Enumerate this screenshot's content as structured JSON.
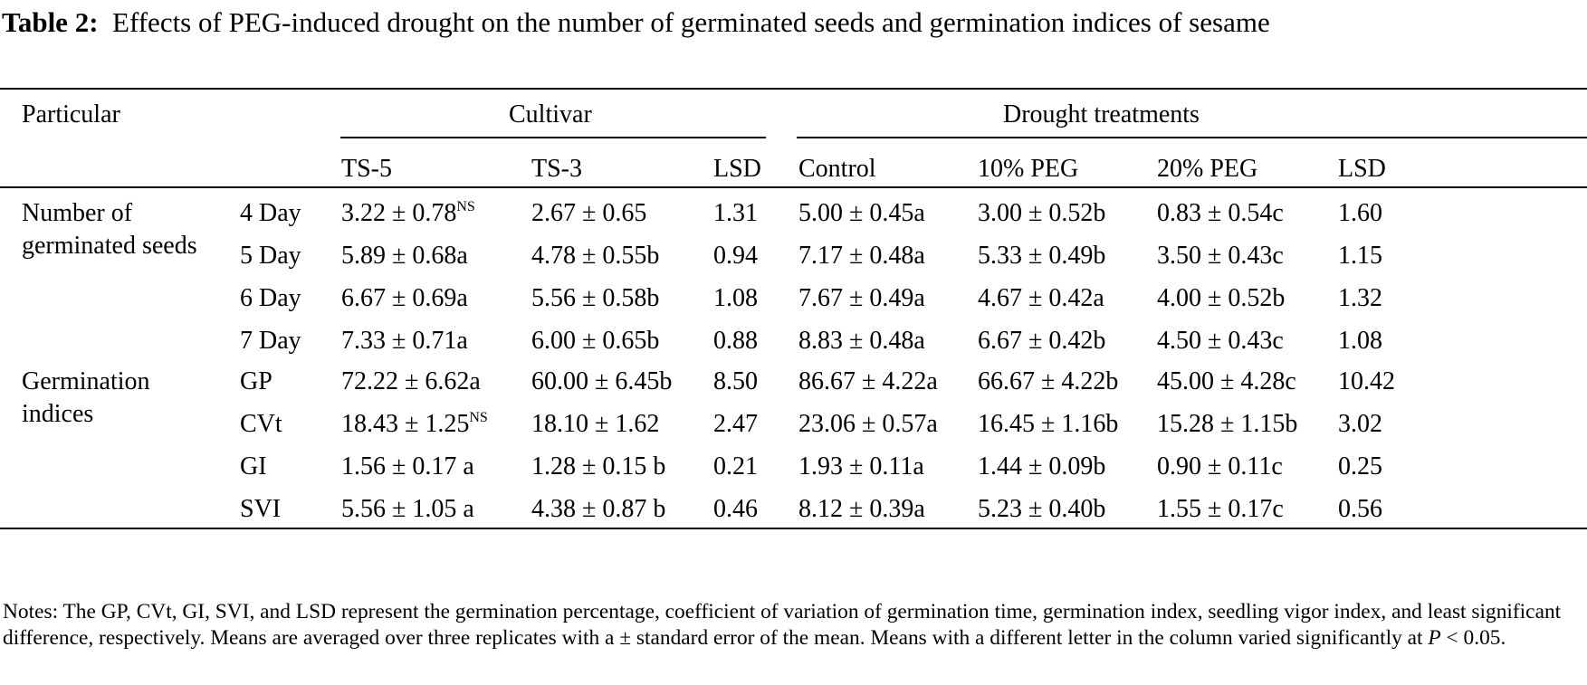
{
  "caption": {
    "label": "Table 2:",
    "text": "Effects of PEG-induced drought on the number of germinated seeds and germination indices of sesame"
  },
  "header": {
    "particular": "Particular",
    "cultivar": "Cultivar",
    "drought": "Drought treatments",
    "cols": [
      "TS-5",
      "TS-3",
      "LSD",
      "Control",
      "10% PEG",
      "20% PEG",
      "LSD"
    ]
  },
  "groups": [
    {
      "label_line1": "Number of",
      "label_line2": "germinated seeds"
    },
    {
      "label_line1": "Germination",
      "label_line2": "indices"
    }
  ],
  "rows": [
    {
      "param": "4 Day",
      "ts5": "3.22 ± 0.78",
      "ts5_sup": "NS",
      "ts3": "2.67 ± 0.65",
      "lsd1": "1.31",
      "control": "5.00 ± 0.45a",
      "peg10": "3.00 ± 0.52b",
      "peg20": "0.83 ± 0.54c",
      "lsd2": "1.60"
    },
    {
      "param": "5 Day",
      "ts5": "5.89 ± 0.68a",
      "ts5_sup": "",
      "ts3": "4.78 ± 0.55b",
      "lsd1": "0.94",
      "control": "7.17 ± 0.48a",
      "peg10": "5.33 ± 0.49b",
      "peg20": "3.50 ± 0.43c",
      "lsd2": "1.15"
    },
    {
      "param": "6 Day",
      "ts5": "6.67 ± 0.69a",
      "ts5_sup": "",
      "ts3": "5.56 ± 0.58b",
      "lsd1": "1.08",
      "control": "7.67 ± 0.49a",
      "peg10": "4.67 ± 0.42a",
      "peg20": "4.00 ± 0.52b",
      "lsd2": "1.32"
    },
    {
      "param": "7 Day",
      "ts5": "7.33 ± 0.71a",
      "ts5_sup": "",
      "ts3": "6.00 ± 0.65b",
      "lsd1": "0.88",
      "control": "8.83 ± 0.48a",
      "peg10": "6.67 ± 0.42b",
      "peg20": "4.50 ± 0.43c",
      "lsd2": "1.08"
    },
    {
      "param": "GP",
      "ts5": "72.22 ± 6.62a",
      "ts5_sup": "",
      "ts3": "60.00 ± 6.45b",
      "lsd1": "8.50",
      "control": "86.67 ± 4.22a",
      "peg10": "66.67 ± 4.22b",
      "peg20": "45.00 ± 4.28c",
      "lsd2": "10.42"
    },
    {
      "param": "CVt",
      "ts5": "18.43 ± 1.25",
      "ts5_sup": "NS",
      "ts3": "18.10 ± 1.62",
      "lsd1": "2.47",
      "control": "23.06 ± 0.57a",
      "peg10": "16.45 ± 1.16b",
      "peg20": "15.28 ± 1.15b",
      "lsd2": "3.02"
    },
    {
      "param": "GI",
      "ts5": "1.56 ± 0.17 a",
      "ts5_sup": "",
      "ts3": "1.28 ± 0.15 b",
      "lsd1": "0.21",
      "control": "1.93 ± 0.11a",
      "peg10": "1.44 ± 0.09b",
      "peg20": "0.90 ± 0.11c",
      "lsd2": "0.25"
    },
    {
      "param": "SVI",
      "ts5": "5.56 ± 1.05 a",
      "ts5_sup": "",
      "ts3": "4.38 ± 0.87 b",
      "lsd1": "0.46",
      "control": "8.12 ± 0.39a",
      "peg10": "5.23 ± 0.40b",
      "peg20": "1.55 ± 0.17c",
      "lsd2": "0.56"
    }
  ],
  "notes": {
    "part1": "Notes: The GP, CVt, GI, SVI, and LSD represent the germination percentage, coefficient of variation of germination time, germination index, seedling vigor index, and least significant difference, respectively. Means are averaged over three replicates with a ± standard error of the mean. Means with a different letter in the column varied significantly at ",
    "p": "P",
    "part2": " < 0.05."
  }
}
